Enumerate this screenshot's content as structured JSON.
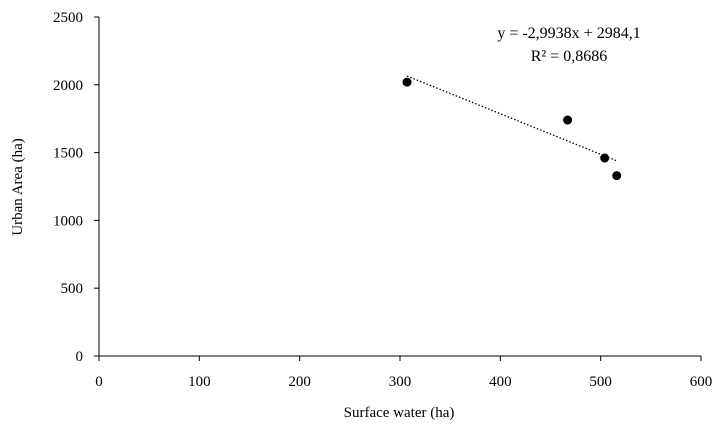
{
  "chart_data": {
    "type": "scatter",
    "xlabel": "Surface water (ha)",
    "ylabel": "Urban Area (ha)",
    "xlim": [
      0,
      600
    ],
    "ylim": [
      0,
      2500
    ],
    "xticks": [
      0,
      100,
      200,
      300,
      400,
      500,
      600
    ],
    "yticks": [
      0,
      500,
      1000,
      1500,
      2000,
      2500
    ],
    "grid": false,
    "points": [
      {
        "x": 307,
        "y": 2020
      },
      {
        "x": 467,
        "y": 1740
      },
      {
        "x": 504,
        "y": 1460
      },
      {
        "x": 516,
        "y": 1330
      }
    ],
    "trendline": {
      "type": "linear",
      "slope": -2.9938,
      "intercept": 2984.1,
      "x_range": [
        307,
        516
      ],
      "equation_label": "y = -2,9938x + 2984,1",
      "r2_label": "R² = 0,8686"
    }
  }
}
